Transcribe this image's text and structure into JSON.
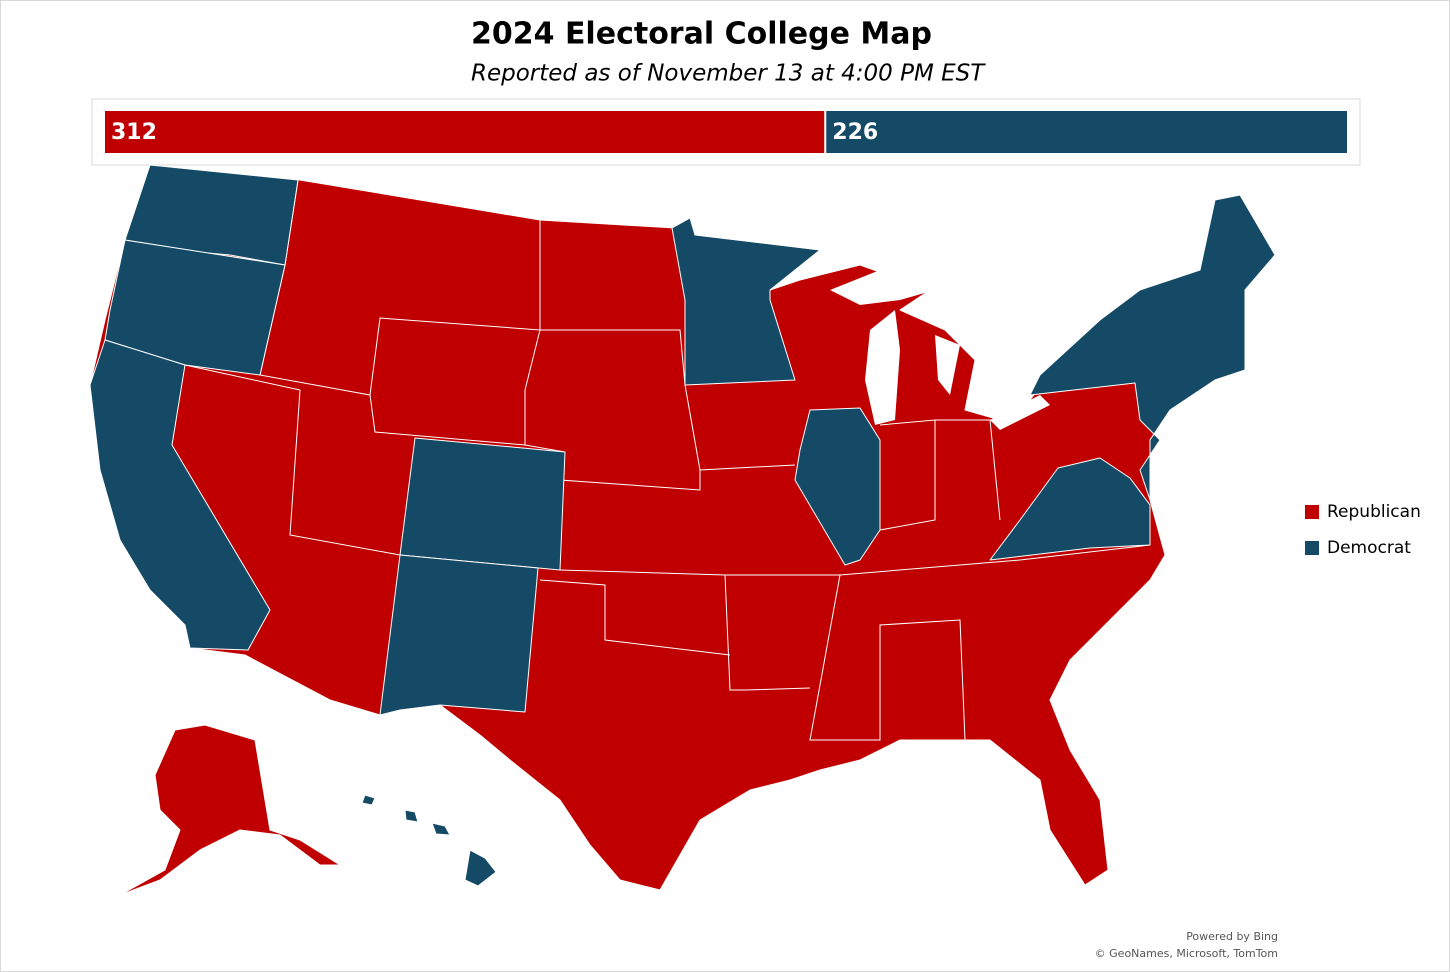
{
  "header": {
    "title": "2024 Electoral College Map",
    "subtitle": "Reported as of November 13 at 4:00 PM EST"
  },
  "tally": {
    "series": [
      {
        "name": "Republican",
        "color": "#c00000",
        "value": 312
      },
      {
        "name": "Democrat",
        "color": "#154a66",
        "value": 226
      }
    ]
  },
  "attribution": [
    "Powered by Bing",
    "© GeoNames, Microsoft, TomTom"
  ]
}
